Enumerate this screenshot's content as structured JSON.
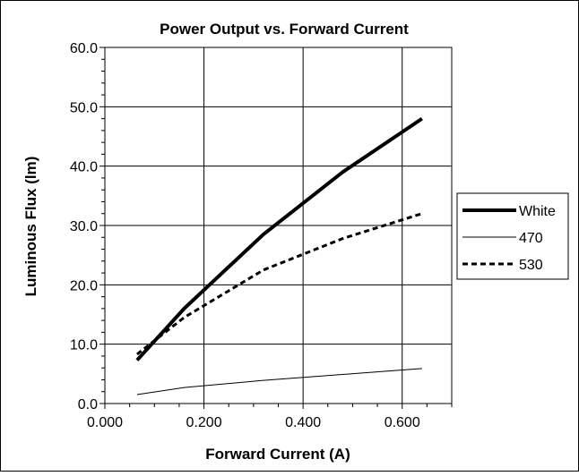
{
  "chart_data": {
    "type": "line",
    "title": "Power Output vs. Forward Current",
    "xlabel": "Forward Current (A)",
    "ylabel": "Luminous Flux (lm)",
    "xlim": [
      0,
      0.7
    ],
    "ylim": [
      0,
      60
    ],
    "x_ticks": [
      "0.000",
      "0.200",
      "0.400",
      "0.600"
    ],
    "x_tick_values": [
      0,
      0.2,
      0.4,
      0.6
    ],
    "y_ticks": [
      "0.0",
      "10.0",
      "20.0",
      "30.0",
      "40.0",
      "50.0",
      "60.0"
    ],
    "y_tick_values": [
      0,
      10,
      20,
      30,
      40,
      50,
      60
    ],
    "grid": true,
    "legend_position": "right",
    "series": [
      {
        "name": "White",
        "style": "thick-solid",
        "color": "#000000",
        "x": [
          0.065,
          0.16,
          0.32,
          0.48,
          0.64
        ],
        "y": [
          7.3,
          16.0,
          28.5,
          39.0,
          48.0
        ]
      },
      {
        "name": "470",
        "style": "thin-solid",
        "color": "#000000",
        "x": [
          0.065,
          0.16,
          0.32,
          0.48,
          0.64
        ],
        "y": [
          1.5,
          2.7,
          3.9,
          4.9,
          5.9
        ]
      },
      {
        "name": "530",
        "style": "dashed",
        "color": "#000000",
        "x": [
          0.065,
          0.16,
          0.32,
          0.48,
          0.64
        ],
        "y": [
          8.3,
          14.5,
          22.5,
          27.8,
          32.0
        ]
      }
    ]
  }
}
